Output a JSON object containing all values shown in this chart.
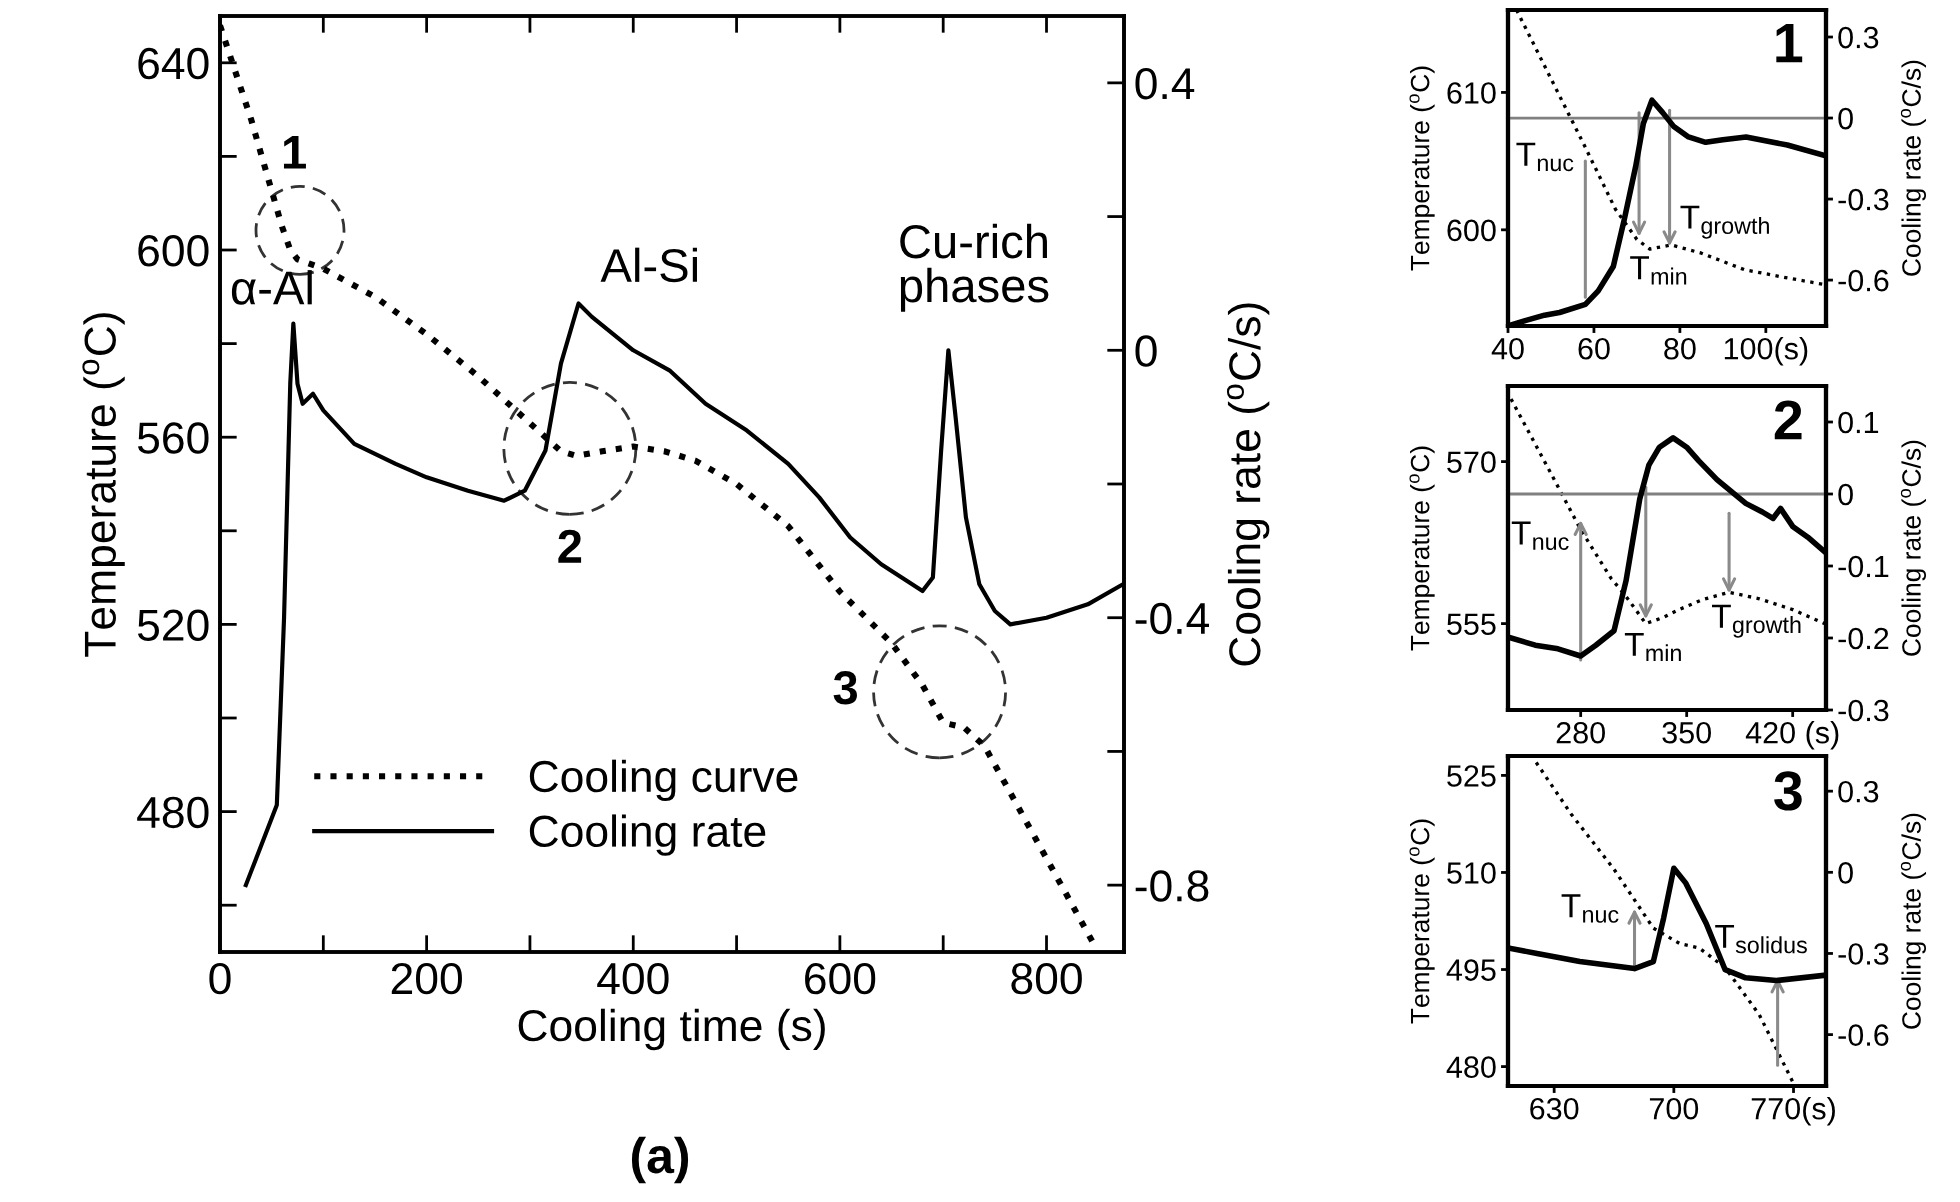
{
  "chart_data": [
    {
      "type": "line",
      "xlabel": "Cooling time (s)",
      "ylabel": "Temperature ($^{o}$C)",
      "y2label": "Cooling rate ($^{o}$C/s)",
      "xlim": [
        0,
        875
      ],
      "ylim": [
        450,
        650
      ],
      "y2lim": [
        -0.9,
        0.5
      ],
      "xticks": [
        0,
        {
          "value": 100,
          "label": null
        },
        200,
        {
          "value": 300,
          "label": null
        },
        400,
        {
          "value": 500,
          "label": null
        },
        600,
        {
          "value": 700,
          "label": null
        },
        800
      ],
      "yticks": [
        {
          "value": 460,
          "label": null
        },
        480,
        {
          "value": 500,
          "label": null
        },
        520,
        {
          "value": 540,
          "label": null
        },
        560,
        {
          "value": 580,
          "label": null
        },
        600,
        {
          "value": 620,
          "label": null
        },
        640
      ],
      "y2ticks": [
        -0.8,
        {
          "value": -0.6,
          "label": null
        },
        -0.4,
        {
          "value": -0.2,
          "label": null
        },
        0,
        {
          "value": 0.2,
          "label": null
        },
        0.4
      ],
      "legend": "bottom left",
      "series": [
        {
          "name": "Cooling curve",
          "color": "#000000",
          "line_style": "dotted",
          "x": [
            0,
            30,
            60,
            68,
            75,
            100,
            150,
            200,
            250,
            300,
            330,
            345,
            370,
            400,
            430,
            460,
            500,
            550,
            600,
            650,
            680,
            700,
            720,
            740,
            760,
            780,
            800,
            820,
            845
          ],
          "values": [
            648,
            628,
            605,
            600,
            598,
            596,
            590,
            582,
            573,
            563,
            557,
            556,
            557,
            558,
            557,
            555,
            550,
            541,
            527,
            516,
            507,
            499,
            498,
            494,
            486,
            478,
            470,
            462,
            452
          ]
        },
        {
          "name": "Cooling rate",
          "color": "#000000",
          "line_style": "solid",
          "axis": "y2",
          "x": [
            25,
            35,
            45,
            55,
            62,
            68,
            71,
            75,
            80,
            90,
            100,
            130,
            170,
            200,
            240,
            275,
            295,
            315,
            330,
            347,
            360,
            400,
            435,
            470,
            510,
            550,
            580,
            610,
            640,
            680,
            690,
            698,
            705,
            712,
            722,
            735,
            750,
            765,
            800,
            840,
            874
          ],
          "values": [
            -0.8,
            -0.76,
            -0.72,
            -0.68,
            -0.4,
            -0.05,
            0.04,
            -0.05,
            -0.08,
            -0.065,
            -0.09,
            -0.14,
            -0.17,
            -0.19,
            -0.21,
            -0.225,
            -0.21,
            -0.15,
            -0.02,
            0.07,
            0.05,
            0.0,
            -0.03,
            -0.08,
            -0.12,
            -0.17,
            -0.22,
            -0.28,
            -0.32,
            -0.36,
            -0.34,
            -0.15,
            0.0,
            -0.1,
            -0.25,
            -0.35,
            -0.39,
            -0.41,
            -0.4,
            -0.38,
            -0.35
          ]
        }
      ],
      "annotations": [
        "1",
        "2",
        "3",
        "α-Al",
        "Al-Si",
        "Cu-rich\nphases",
        "(a)"
      ]
    },
    {
      "type": "line",
      "ylabel": "Temperature ($^{o}$C)",
      "y2label": "Cooling rate ($^{o}$C/s)",
      "xlim": [
        40,
        114
      ],
      "ylim": [
        593,
        616
      ],
      "y2lim": [
        -0.77,
        0.4
      ],
      "xticks": [
        40,
        60,
        80,
        {
          "value": 100,
          "label": "100(s)"
        }
      ],
      "yticks": [
        600,
        610
      ],
      "y2ticks": [
        -0.6,
        -0.3,
        0,
        0.3
      ],
      "ref_lines": [
        {
          "axis": "y2",
          "value": 0,
          "color": "#808080"
        }
      ],
      "series": [
        {
          "color": "#000000",
          "line_style": "dotted",
          "x": [
            42,
            50,
            58,
            65,
            70,
            73,
            78,
            85,
            95,
            105,
            114
          ],
          "values": [
            616,
            611,
            606,
            601.5,
            599.3,
            598.6,
            598.9,
            598.3,
            597.1,
            596.5,
            596
          ]
        },
        {
          "color": "#000000",
          "line_style": "solid",
          "axis": "y2",
          "x": [
            40,
            44,
            48.5,
            52,
            58,
            61,
            64.5,
            67,
            69.7,
            71.5,
            73.5,
            76,
            78.5,
            82,
            86,
            90,
            95.4,
            105,
            114
          ],
          "values": [
            -0.77,
            -0.75,
            -0.73,
            -0.72,
            -0.69,
            -0.64,
            -0.55,
            -0.38,
            -0.18,
            -0.02,
            0.066,
            0.02,
            -0.03,
            -0.07,
            -0.09,
            -0.08,
            -0.07,
            -0.1,
            -0.14
          ]
        }
      ],
      "annotations": [
        "1",
        {
          "text": "T$_{nuc}$",
          "x": 58,
          "y": 605
        },
        {
          "text": "T$_{min}$",
          "x": 70.5,
          "y": 599.5
        },
        {
          "text": "T$_{growth}$",
          "x": 77.6,
          "y": 598.8
        }
      ]
    },
    {
      "type": "line",
      "ylabel": "Temperature ($^{o}$C)",
      "y2label": "Cooling rate ($^{o}$C/s)",
      "xlim": [
        232,
        442
      ],
      "ylim": [
        547,
        577
      ],
      "y2lim": [
        -0.3,
        0.15
      ],
      "xticks": [
        280,
        350,
        {
          "value": 420,
          "label": "420 (s)"
        }
      ],
      "yticks": [
        555,
        570
      ],
      "y2ticks": [
        -0.3,
        -0.2,
        -0.1,
        0,
        0.1
      ],
      "ref_lines": [
        {
          "axis": "y2",
          "value": 0,
          "color": "#808080"
        }
      ],
      "series": [
        {
          "color": "#000000",
          "line_style": "dotted",
          "x": [
            234,
            260,
            280,
            300,
            309,
            323,
            335,
            345,
            360,
            378,
            398,
            420,
            441
          ],
          "values": [
            575.8,
            569,
            563.7,
            559.2,
            557.7,
            555,
            555.6,
            556.3,
            557.2,
            557.9,
            557.3,
            556.3,
            555
          ]
        },
        {
          "color": "#000000",
          "line_style": "solid",
          "axis": "y2",
          "x": [
            234,
            250,
            265,
            280,
            290,
            302,
            310,
            319,
            325,
            332,
            341,
            350,
            358,
            370,
            389,
            400,
            407,
            412,
            420,
            430,
            441
          ],
          "values": [
            -0.2,
            -0.21,
            -0.215,
            -0.225,
            -0.21,
            -0.19,
            -0.12,
            -0.007,
            0.04,
            0.065,
            0.078,
            0.065,
            0.046,
            0.02,
            -0.013,
            -0.025,
            -0.034,
            -0.02,
            -0.045,
            -0.06,
            -0.08
          ]
        }
      ],
      "annotations": [
        "2",
        {
          "text": "T$_{nuc}$",
          "x": 280,
          "y": 564.6
        },
        {
          "text": "T$_{min}$",
          "x": 323,
          "y": 555.4
        },
        {
          "text": "T$_{growth}$",
          "x": 378,
          "y": 557.8
        }
      ]
    },
    {
      "type": "line",
      "ylabel": "Temperature ($^{o}$C)",
      "y2label": "Cooling rate ($^{o}$C/s)",
      "xlim": [
        603,
        789
      ],
      "ylim": [
        477,
        528
      ],
      "y2lim": [
        -0.79,
        0.43
      ],
      "xticks": [
        630,
        700,
        {
          "value": 770,
          "label": "770(s)"
        }
      ],
      "yticks": [
        480,
        495,
        510,
        525
      ],
      "y2ticks": [
        -0.6,
        -0.3,
        0,
        0.3
      ],
      "series": [
        {
          "color": "#000000",
          "line_style": "dotted",
          "x": [
            619.5,
            640,
            665,
            688,
            703.5,
            715,
            730,
            750,
            770
          ],
          "values": [
            527,
            519,
            510.5,
            501.4,
            499,
            498.3,
            495.3,
            488,
            477.4
          ]
        },
        {
          "color": "#000000",
          "line_style": "solid",
          "axis": "y2",
          "x": [
            603,
            620,
            645,
            677,
            688,
            694,
            700,
            707,
            719,
            730,
            742,
            760,
            789
          ],
          "values": [
            -0.28,
            -0.3,
            -0.33,
            -0.356,
            -0.33,
            -0.17,
            0.015,
            -0.04,
            -0.19,
            -0.36,
            -0.39,
            -0.4,
            -0.38
          ]
        }
      ],
      "annotations": [
        "3",
        {
          "text": "T$_{nuc}$",
          "x": 677,
          "y": 504.4
        },
        {
          "text": "T$_{solidus}$",
          "x": 760.7,
          "y": 493.8
        }
      ]
    }
  ]
}
